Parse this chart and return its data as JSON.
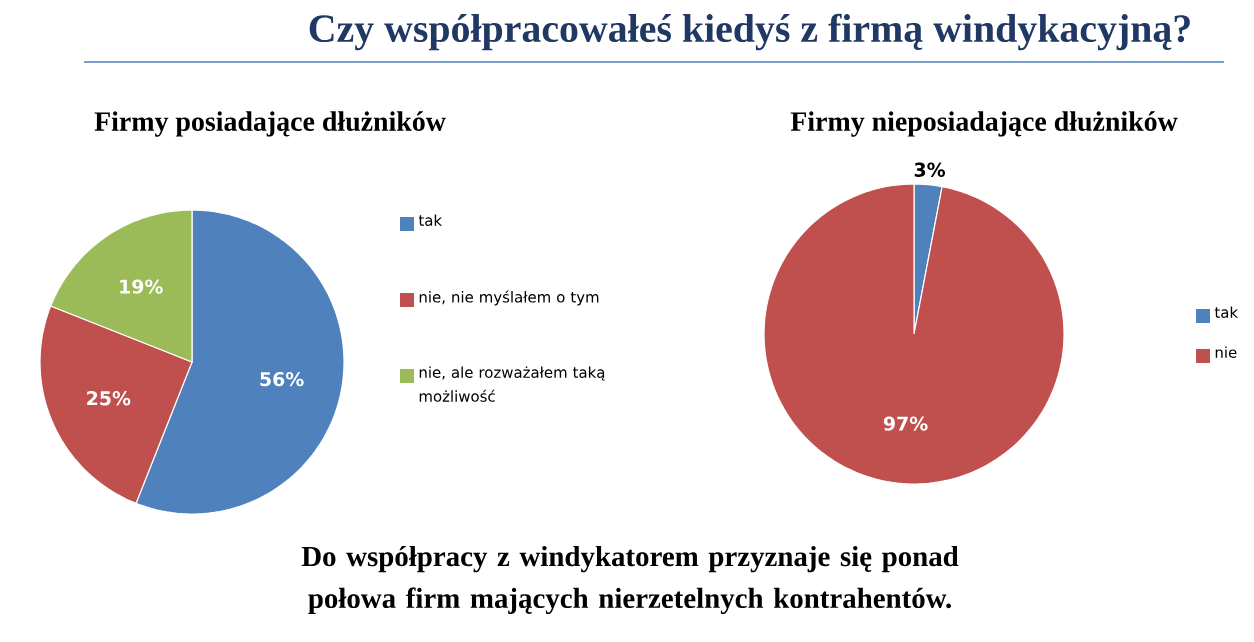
{
  "chart_data": [
    {
      "type": "other",
      "title": "Czy współpracowałeś kiedyś z firmą windykacyjną?",
      "annotations": [
        "Do współpracy z windykatorem przyznaje się ponad połowa firm mających nierzetelnych kontrahentów."
      ]
    },
    {
      "type": "pie",
      "title": "Firmy posiadające dłużników",
      "categories": [
        "tak",
        "nie, nie myślałem o tym",
        "nie, ale rozważałem taką możliwość"
      ],
      "values": [
        56,
        25,
        19
      ],
      "colors": [
        "#4f81bd",
        "#c0504d",
        "#9bbb59"
      ],
      "value_labels": [
        "56%",
        "25%",
        "19%"
      ],
      "legend": "right"
    },
    {
      "type": "pie",
      "title": "Firmy nieposiadające dłużników",
      "categories": [
        "tak",
        "nie"
      ],
      "values": [
        3,
        97
      ],
      "colors": [
        "#4f81bd",
        "#c0504d"
      ],
      "value_labels": [
        "3%",
        "97%"
      ],
      "legend": "right"
    }
  ]
}
